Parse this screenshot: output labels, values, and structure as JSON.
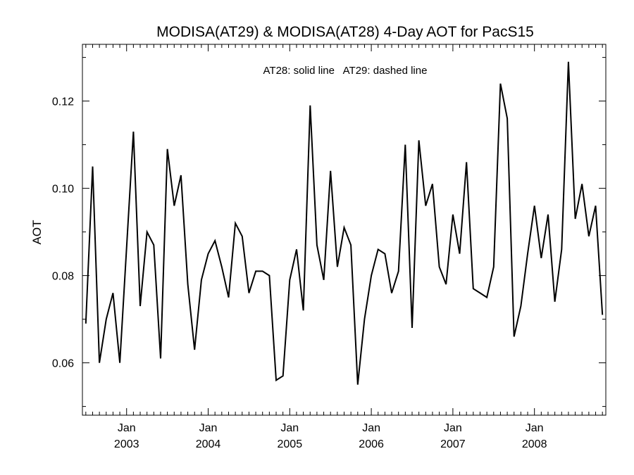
{
  "chart_data": {
    "type": "line",
    "title": "MODISA(AT29) & MODISA(AT28) 4-Day AOT for PacS15",
    "ylabel": "AOT",
    "xlabel": "",
    "annotation": "AT28: solid line   AT29: dashed line",
    "ylim": [
      0.048,
      0.133
    ],
    "xlim": [
      "2002-07",
      "2008-12"
    ],
    "y_ticks": [
      "0.06",
      "0.08",
      "0.10",
      "0.12"
    ],
    "x_ticks": [
      {
        "month": "Jan",
        "year": "2003",
        "date": "2003-01"
      },
      {
        "month": "Jan",
        "year": "2004",
        "date": "2004-01"
      },
      {
        "month": "Jan",
        "year": "2005",
        "date": "2005-01"
      },
      {
        "month": "Jan",
        "year": "2006",
        "date": "2006-01"
      },
      {
        "month": "Jan",
        "year": "2007",
        "date": "2007-01"
      },
      {
        "month": "Jan",
        "year": "2008",
        "date": "2008-01"
      }
    ],
    "series": [
      {
        "line_style": "solid",
        "color": "#000000",
        "points": [
          [
            "2002-07",
            0.069
          ],
          [
            "2002-08",
            0.105
          ],
          [
            "2002-09",
            0.06
          ],
          [
            "2002-10",
            0.07
          ],
          [
            "2002-11",
            0.076
          ],
          [
            "2002-12",
            0.06
          ],
          [
            "2003-02",
            0.113
          ],
          [
            "2003-03",
            0.073
          ],
          [
            "2003-04",
            0.09
          ],
          [
            "2003-05",
            0.087
          ],
          [
            "2003-06",
            0.061
          ],
          [
            "2003-07",
            0.109
          ],
          [
            "2003-08",
            0.096
          ],
          [
            "2003-09",
            0.103
          ],
          [
            "2003-10",
            0.078
          ],
          [
            "2003-11",
            0.063
          ],
          [
            "2003-12",
            0.079
          ],
          [
            "2004-01",
            0.085
          ],
          [
            "2004-02",
            0.088
          ],
          [
            "2004-03",
            0.082
          ],
          [
            "2004-04",
            0.075
          ],
          [
            "2004-05",
            0.092
          ],
          [
            "2004-06",
            0.089
          ],
          [
            "2004-07",
            0.076
          ],
          [
            "2004-08",
            0.081
          ],
          [
            "2004-09",
            0.081
          ],
          [
            "2004-10",
            0.08
          ],
          [
            "2004-11",
            0.056
          ],
          [
            "2004-12",
            0.057
          ],
          [
            "2005-01",
            0.079
          ],
          [
            "2005-02",
            0.086
          ],
          [
            "2005-03",
            0.072
          ],
          [
            "2005-04",
            0.119
          ],
          [
            "2005-05",
            0.087
          ],
          [
            "2005-06",
            0.079
          ],
          [
            "2005-07",
            0.104
          ],
          [
            "2005-08",
            0.082
          ],
          [
            "2005-09",
            0.091
          ],
          [
            "2005-10",
            0.087
          ],
          [
            "2005-11",
            0.055
          ],
          [
            "2005-12",
            0.07
          ],
          [
            "2006-01",
            0.08
          ],
          [
            "2006-02",
            0.086
          ],
          [
            "2006-03",
            0.085
          ],
          [
            "2006-04",
            0.076
          ],
          [
            "2006-05",
            0.081
          ],
          [
            "2006-06",
            0.11
          ],
          [
            "2006-07",
            0.068
          ],
          [
            "2006-08",
            0.111
          ],
          [
            "2006-09",
            0.096
          ],
          [
            "2006-10",
            0.101
          ],
          [
            "2006-11",
            0.082
          ],
          [
            "2006-12",
            0.078
          ],
          [
            "2007-01",
            0.094
          ],
          [
            "2007-02",
            0.085
          ],
          [
            "2007-03",
            0.106
          ],
          [
            "2007-04",
            0.077
          ],
          [
            "2007-05",
            0.076
          ],
          [
            "2007-06",
            0.075
          ],
          [
            "2007-07",
            0.082
          ],
          [
            "2007-08",
            0.124
          ],
          [
            "2007-09",
            0.116
          ],
          [
            "2007-10",
            0.066
          ],
          [
            "2007-11",
            0.073
          ],
          [
            "2007-12",
            0.085
          ],
          [
            "2008-01",
            0.096
          ],
          [
            "2008-02",
            0.084
          ],
          [
            "2008-03",
            0.094
          ],
          [
            "2008-04",
            0.074
          ],
          [
            "2008-05",
            0.086
          ],
          [
            "2008-06",
            0.129
          ],
          [
            "2008-07",
            0.093
          ],
          [
            "2008-08",
            0.101
          ],
          [
            "2008-09",
            0.089
          ],
          [
            "2008-10",
            0.096
          ],
          [
            "2008-11",
            0.071
          ]
        ]
      }
    ]
  }
}
